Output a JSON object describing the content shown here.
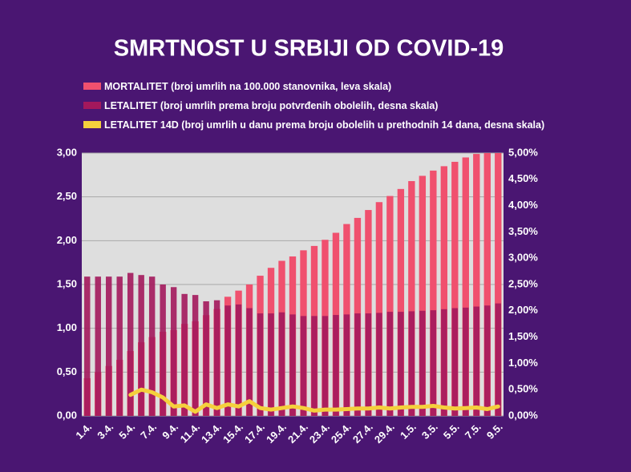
{
  "chart_data": {
    "type": "bar",
    "title": "SMRTNOST U SRBIJI OD COVID-19",
    "categories": [
      "1.4.",
      null,
      "3.4.",
      null,
      "5.4.",
      null,
      "7.4.",
      null,
      "9.4.",
      null,
      "11.4.",
      null,
      "13.4.",
      null,
      "15.4.",
      null,
      "17.4.",
      null,
      "19.4.",
      null,
      "21.4.",
      null,
      "23.4.",
      null,
      "25.4.",
      null,
      "27.4.",
      null,
      "29.4.",
      null,
      "1.5.",
      null,
      "3.5.",
      null,
      "5.5.",
      null,
      "7.5.",
      null,
      "9.5."
    ],
    "series": [
      {
        "name": "MORTALITET (broj umrlih na 100.000 stanovnika, leva skala)",
        "type": "bar",
        "color": "#f0506e",
        "values": [
          0.43,
          0.5,
          0.57,
          0.64,
          0.74,
          0.84,
          0.9,
          0.96,
          0.98,
          1.05,
          1.08,
          1.15,
          1.22,
          1.36,
          1.43,
          1.5,
          1.6,
          1.69,
          1.77,
          1.82,
          1.89,
          1.94,
          2.01,
          2.09,
          2.19,
          2.26,
          2.35,
          2.44,
          2.51,
          2.59,
          2.68,
          2.74,
          2.8,
          2.85,
          2.9,
          2.95,
          2.99,
          3.0,
          3.0
        ]
      },
      {
        "name": "LETALITET (broj umrlih prema broju potvrđenih obolelih, desna skala)",
        "type": "bar",
        "axis": "y2",
        "color": "#a3185c",
        "values": [
          2.65,
          2.65,
          2.65,
          2.65,
          2.72,
          2.68,
          2.65,
          2.5,
          2.45,
          2.32,
          2.3,
          2.18,
          2.2,
          2.1,
          2.12,
          2.05,
          1.95,
          1.95,
          1.97,
          1.93,
          1.9,
          1.9,
          1.9,
          1.92,
          1.93,
          1.95,
          1.95,
          1.96,
          1.98,
          1.98,
          1.99,
          2.0,
          2.01,
          2.03,
          2.05,
          2.06,
          2.08,
          2.1,
          2.14
        ]
      },
      {
        "name": "LETALITET 14D (broj umrlih u danu prema broju obolelih u prethodnih 14 dana, desna skala)",
        "type": "line",
        "axis": "y2",
        "color": "#f5d03c",
        "values": [
          null,
          null,
          null,
          null,
          0.4,
          0.5,
          0.45,
          0.35,
          0.18,
          0.2,
          0.08,
          0.22,
          0.15,
          0.22,
          0.18,
          0.28,
          0.15,
          0.12,
          0.15,
          0.18,
          0.15,
          0.1,
          0.12,
          0.12,
          0.13,
          0.14,
          0.14,
          0.16,
          0.14,
          0.16,
          0.17,
          0.17,
          0.19,
          0.16,
          0.14,
          0.15,
          0.16,
          0.13,
          0.18
        ]
      }
    ],
    "ylim": [
      0,
      3
    ],
    "yticks": [
      {
        "value": 0,
        "label": "0,00"
      },
      {
        "value": 0.5,
        "label": "0,50"
      },
      {
        "value": 1,
        "label": "1,00"
      },
      {
        "value": 1.5,
        "label": "1,50"
      },
      {
        "value": 2,
        "label": "2,00"
      },
      {
        "value": 2.5,
        "label": "2,50"
      },
      {
        "value": 3,
        "label": "3,00"
      }
    ],
    "y2lim": [
      0,
      5
    ],
    "y2ticks": [
      {
        "value": 0,
        "label": "0,00%"
      },
      {
        "value": 0.5,
        "label": "0,50%"
      },
      {
        "value": 1,
        "label": "1,00%"
      },
      {
        "value": 1.5,
        "label": "1,50%"
      },
      {
        "value": 2,
        "label": "2,00%"
      },
      {
        "value": 2.5,
        "label": "2,50%"
      },
      {
        "value": 3,
        "label": "3,00%"
      },
      {
        "value": 3.5,
        "label": "3,50%"
      },
      {
        "value": 4,
        "label": "4,00%"
      },
      {
        "value": 4.5,
        "label": "4,50%"
      },
      {
        "value": 5,
        "label": "5,00%"
      }
    ],
    "grid": true
  }
}
